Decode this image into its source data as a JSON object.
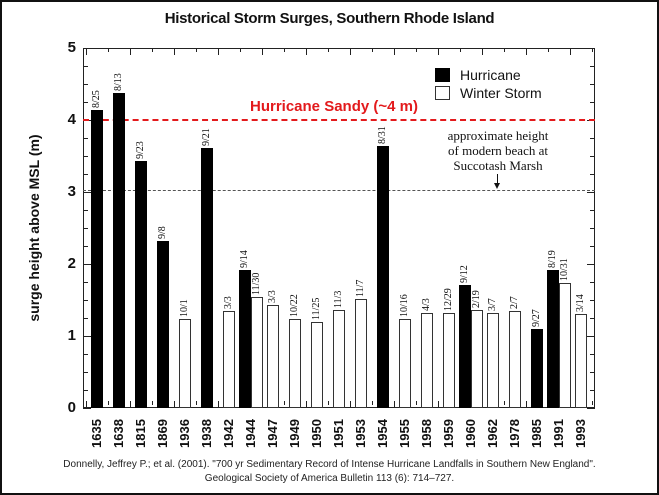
{
  "title": "Historical Storm Surges, Southern Rhode Island",
  "legend": {
    "hurricane": "Hurricane",
    "winter": "Winter Storm"
  },
  "annotations": {
    "sandy": "Hurricane Sandy (~4 m)",
    "beach_line1": "approximate height",
    "beach_line2": "of modern beach at",
    "beach_line3": "Succotash Marsh"
  },
  "citation": {
    "line1": "Donnelly, Jeffrey P.; et al. (2001). \"700 yr Sedimentary Record of Intense Hurricane Landfalls in Southern New England\".",
    "line2": "Geological Society of America Bulletin 113 (6): 714–727."
  },
  "colors": {
    "hurricane": "#000000",
    "winter": "#ffffff",
    "sandy": "#e31a1c",
    "beach": "#555555"
  },
  "chart_data": {
    "type": "bar",
    "title": "Historical Storm Surges, Southern Rhode Island",
    "xlabel": "",
    "ylabel": "surge height above MSL (m)",
    "ylim": [
      0,
      5
    ],
    "yticks": [
      "0",
      "1",
      "2",
      "3",
      "4",
      "5"
    ],
    "grid": false,
    "legend_position": "top-right",
    "categories": [
      "1635",
      "1638",
      "1815",
      "1869",
      "1936",
      "1938",
      "1942",
      "1944",
      "1947",
      "1949",
      "1950",
      "1951",
      "1953",
      "1954",
      "1955",
      "1958",
      "1959",
      "1960",
      "1962",
      "1978",
      "1985",
      "1991",
      "1993"
    ],
    "bars": [
      {
        "year": "1635",
        "type": "Hurricane",
        "date": "8/25",
        "value": 4.14
      },
      {
        "year": "1638",
        "type": "Hurricane",
        "date": "8/13",
        "value": 4.37
      },
      {
        "year": "1815",
        "type": "Hurricane",
        "date": "9/23",
        "value": 3.43
      },
      {
        "year": "1869",
        "type": "Hurricane",
        "date": "9/8",
        "value": 2.32
      },
      {
        "year": "1936",
        "type": "Winter Storm",
        "date": "10/1",
        "value": 1.23
      },
      {
        "year": "1938",
        "type": "Hurricane",
        "date": "9/21",
        "value": 3.61
      },
      {
        "year": "1942",
        "type": "Winter Storm",
        "date": "3/3",
        "value": 1.35
      },
      {
        "year": "1944",
        "type": "Hurricane",
        "date": "9/14",
        "value": 1.92
      },
      {
        "year": "1944",
        "type": "Winter Storm",
        "date": "11/30",
        "value": 1.54
      },
      {
        "year": "1947",
        "type": "Winter Storm",
        "date": "3/3",
        "value": 1.43
      },
      {
        "year": "1949",
        "type": "Winter Storm",
        "date": "10/22",
        "value": 1.24
      },
      {
        "year": "1950",
        "type": "Winter Storm",
        "date": "11/25",
        "value": 1.2
      },
      {
        "year": "1951",
        "type": "Winter Storm",
        "date": "11/3",
        "value": 1.36
      },
      {
        "year": "1953",
        "type": "Winter Storm",
        "date": "11/7",
        "value": 1.51
      },
      {
        "year": "1954",
        "type": "Hurricane",
        "date": "8/31",
        "value": 3.64
      },
      {
        "year": "1955",
        "type": "Winter Storm",
        "date": "10/16",
        "value": 1.23
      },
      {
        "year": "1958",
        "type": "Winter Storm",
        "date": "4/3",
        "value": 1.32
      },
      {
        "year": "1959",
        "type": "Winter Storm",
        "date": "12/29",
        "value": 1.32
      },
      {
        "year": "1960",
        "type": "Hurricane",
        "date": "9/12",
        "value": 1.71
      },
      {
        "year": "1960",
        "type": "Winter Storm",
        "date": "2/19",
        "value": 1.36
      },
      {
        "year": "1962",
        "type": "Winter Storm",
        "date": "3/7",
        "value": 1.32
      },
      {
        "year": "1978",
        "type": "Winter Storm",
        "date": "2/7",
        "value": 1.35
      },
      {
        "year": "1985",
        "type": "Hurricane",
        "date": "9/27",
        "value": 1.1
      },
      {
        "year": "1991",
        "type": "Hurricane",
        "date": "8/19",
        "value": 1.92
      },
      {
        "year": "1991",
        "type": "Winter Storm",
        "date": "10/31",
        "value": 1.73
      },
      {
        "year": "1993",
        "type": "Winter Storm",
        "date": "3/14",
        "value": 1.3
      }
    ],
    "series": [
      {
        "name": "Hurricane",
        "values": [
          4.14,
          4.37,
          3.43,
          2.32,
          null,
          3.61,
          null,
          1.92,
          null,
          null,
          null,
          null,
          null,
          3.64,
          null,
          null,
          null,
          1.71,
          null,
          null,
          1.1,
          1.92,
          null
        ]
      },
      {
        "name": "Winter Storm",
        "values": [
          null,
          null,
          null,
          null,
          1.23,
          null,
          1.35,
          1.54,
          1.43,
          1.24,
          1.2,
          1.36,
          1.51,
          null,
          1.23,
          1.32,
          1.32,
          1.36,
          1.32,
          1.35,
          null,
          1.73,
          1.3
        ]
      }
    ],
    "reference_lines": [
      {
        "label": "Hurricane Sandy (~4 m)",
        "value": 4.0,
        "style": "red dashed"
      },
      {
        "label": "approximate height of modern beach at Succotash Marsh",
        "value": 3.0,
        "style": "black dashed"
      }
    ]
  }
}
